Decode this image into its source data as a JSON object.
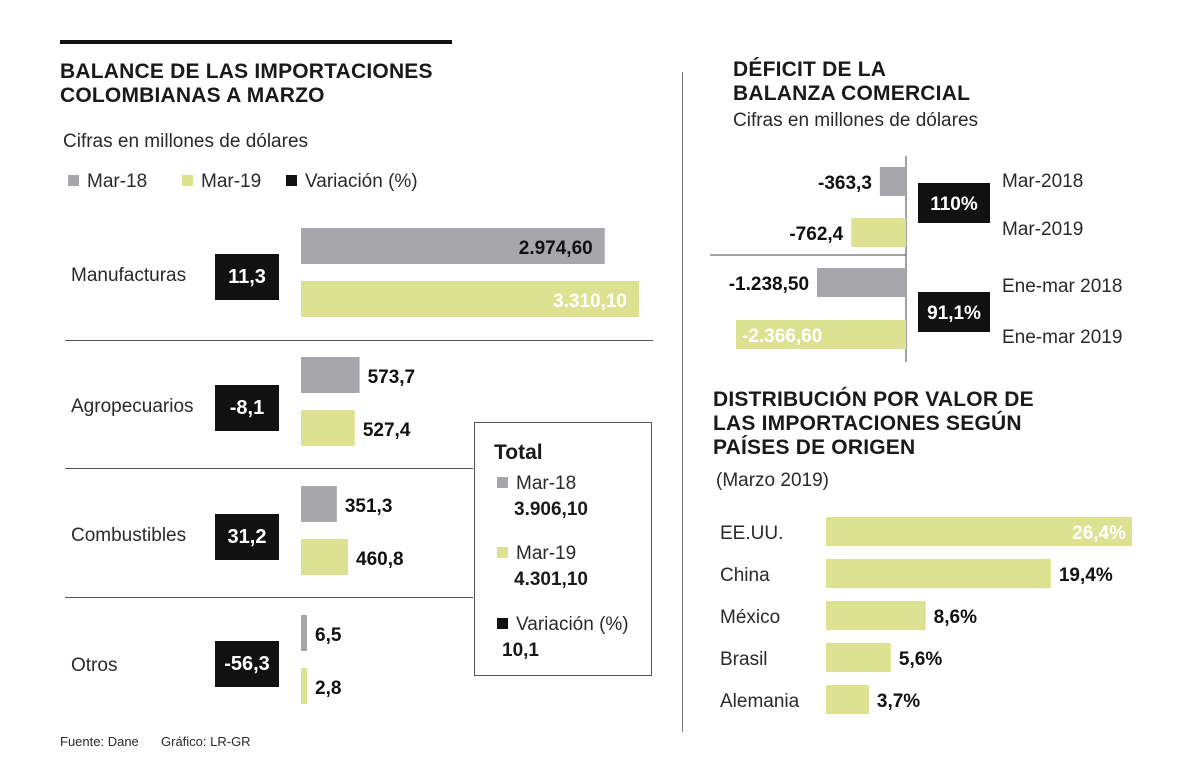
{
  "colors": {
    "mar18": "#a7a6ab",
    "mar19": "#dde293",
    "variation": "#111111"
  },
  "left": {
    "title_line1": "BALANCE DE LAS IMPORTACIONES",
    "title_line2": "COLOMBIANAS A MARZO",
    "subtitle": "Cifras en millones de dólares",
    "legend": [
      "Mar-18",
      "Mar-19",
      "Variación (%)"
    ],
    "total": {
      "title": "Total",
      "mar18_label": "Mar-18",
      "mar18_value": "3.906,10",
      "mar19_label": "Mar-19",
      "mar19_value": "4.301,10",
      "var_label": "Variación (%)",
      "var_value": "10,1"
    }
  },
  "right_top": {
    "title_line1": "DÉFICIT DE LA",
    "title_line2": "BALANZA COMERCIAL",
    "subtitle": "Cifras en millones de dólares"
  },
  "right_bottom": {
    "title_line1": "DISTRIBUCIÓN POR VALOR DE",
    "title_line2": "LAS IMPORTACIONES SEGÚN",
    "title_line3": "PAÍSES DE ORIGEN",
    "subtitle": "(Marzo 2019)"
  },
  "footer": {
    "source": "Fuente: Dane",
    "graphic": "Gráfico: LR-GR"
  },
  "chart_data": [
    {
      "type": "bar",
      "title": "BALANCE DE LAS IMPORTACIONES COLOMBIANAS A MARZO",
      "units": "millones de dólares",
      "categories": [
        "Manufacturas",
        "Agropecuarios",
        "Combustibles",
        "Otros"
      ],
      "series": [
        {
          "name": "Mar-18",
          "values": [
            2974.6,
            573.7,
            351.3,
            6.5
          ],
          "labels": [
            "2.974,60",
            "573,7",
            "351,3",
            "6,5"
          ]
        },
        {
          "name": "Mar-19",
          "values": [
            3310.1,
            527.4,
            460.8,
            2.8
          ],
          "labels": [
            "3.310,10",
            "527,4",
            "460,8",
            "2,8"
          ]
        }
      ],
      "variation": {
        "name": "Variación (%)",
        "labels": [
          "11,3",
          "-8,1",
          "31,2",
          "-56,3"
        ]
      }
    },
    {
      "type": "bar",
      "title": "DÉFICIT DE LA BALANZA COMERCIAL",
      "units": "millones de dólares",
      "groups": [
        {
          "rows": [
            {
              "label": "Mar-2018",
              "value": -363.3,
              "text": "-363,3",
              "series": "mar18"
            },
            {
              "label": "Mar-2019",
              "value": -762.4,
              "text": "-762,4",
              "series": "mar19"
            }
          ],
          "variation": "110%"
        },
        {
          "rows": [
            {
              "label": "Ene-mar 2018",
              "value": -1238.5,
              "text": "-1.238,50",
              "series": "mar18"
            },
            {
              "label": "Ene-mar 2019",
              "value": -2366.6,
              "text": "-2.366,60",
              "series": "mar19"
            }
          ],
          "variation": "91,1%"
        }
      ]
    },
    {
      "type": "bar",
      "title": "DISTRIBUCIÓN POR VALOR DE LAS IMPORTACIONES SEGÚN PAÍSES DE ORIGEN (Marzo 2019)",
      "categories": [
        "EE.UU.",
        "China",
        "México",
        "Brasil",
        "Alemania"
      ],
      "values": [
        26.4,
        19.4,
        8.6,
        5.6,
        3.7
      ],
      "labels": [
        "26,4%",
        "19,4%",
        "8,6%",
        "5,6%",
        "3,7%"
      ]
    }
  ]
}
